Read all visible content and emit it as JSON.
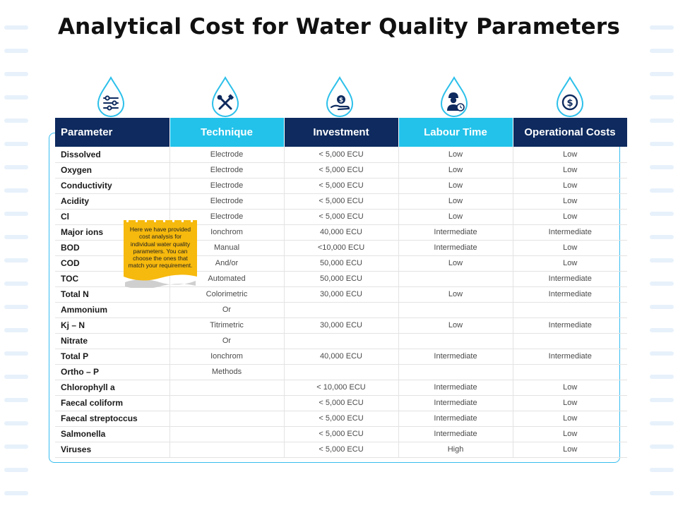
{
  "title": "Analytical Cost for Water Quality Parameters",
  "colors": {
    "navy": "#0e2a5e",
    "cyan": "#22c2ea",
    "frame": "#38bdf0",
    "note": "#f6b90d"
  },
  "icons": [
    "sliders-icon",
    "tools-icon",
    "money-hand-icon",
    "worker-clock-icon",
    "dollar-coin-icon"
  ],
  "headers": [
    "Parameter",
    "Technique",
    "Investment",
    "Labour Time",
    "Operational Costs"
  ],
  "rows": [
    [
      "Dissolved",
      "Electrode",
      "< 5,000 ECU",
      "Low",
      "Low"
    ],
    [
      "Oxygen",
      "Electrode",
      "< 5,000 ECU",
      "Low",
      "Low"
    ],
    [
      "Conductivity",
      "Electrode",
      "< 5,000 ECU",
      "Low",
      "Low"
    ],
    [
      "Acidity",
      "Electrode",
      "< 5,000 ECU",
      "Low",
      "Low"
    ],
    [
      "Cl",
      "Electrode",
      "< 5,000 ECU",
      "Low",
      "Low"
    ],
    [
      "Major ions",
      "Ionchrom",
      "40,000 ECU",
      "Intermediate",
      "Intermediate"
    ],
    [
      "BOD",
      "Manual",
      "<10,000 ECU",
      "Intermediate",
      "Low"
    ],
    [
      "COD",
      "And/or",
      "50,000 ECU",
      "Low",
      "Low"
    ],
    [
      "TOC",
      "Automated",
      "50,000 ECU",
      "",
      "Intermediate"
    ],
    [
      "Total N",
      "Colorimetric",
      "30,000 ECU",
      "Low",
      "Intermediate"
    ],
    [
      "Ammonium",
      "Or",
      "",
      "",
      ""
    ],
    [
      "Kj – N",
      "Titrimetric",
      "30,000 ECU",
      "Low",
      "Intermediate"
    ],
    [
      "Nitrate",
      "Or",
      "",
      "",
      ""
    ],
    [
      "Total P",
      "Ionchrom",
      "40,000 ECU",
      "Intermediate",
      "Intermediate"
    ],
    [
      "Ortho – P",
      "Methods",
      "",
      "",
      ""
    ],
    [
      "Chlorophyll a",
      "",
      "< 10,000 ECU",
      "Intermediate",
      "Low"
    ],
    [
      "Faecal coliform",
      "",
      "< 5,000 ECU",
      "Intermediate",
      "Low"
    ],
    [
      "Faecal streptoccus",
      "",
      "< 5,000 ECU",
      "Intermediate",
      "Low"
    ],
    [
      "Salmonella",
      "",
      "< 5,000 ECU",
      "Intermediate",
      "Low"
    ],
    [
      "Viruses",
      "",
      "< 5,000 ECU",
      "High",
      "Low"
    ]
  ],
  "note": {
    "lines": [
      "Here we have provided",
      "cost analysis for",
      "individual water quality",
      "parameters. You can",
      "choose the ones that",
      "match your requirement."
    ]
  }
}
